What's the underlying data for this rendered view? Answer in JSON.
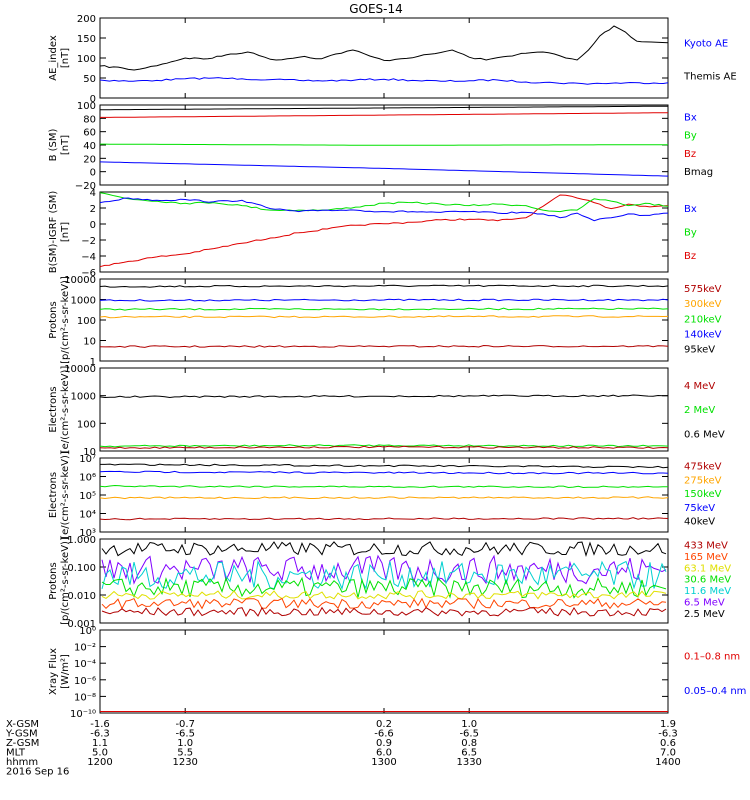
{
  "title": "GOES-14",
  "colors": {
    "black": "#000000",
    "blue": "#0000ff",
    "green": "#00e000",
    "red": "#e00000",
    "darkred": "#b00000",
    "orange": "#ffa500",
    "cyan": "#00d0d0",
    "purple": "#8000ff",
    "orangered": "#ff4500",
    "yellow": "#e0e000"
  },
  "xaxis": {
    "time_range": [
      1200,
      1400
    ],
    "ticks": [
      1200,
      1230,
      1300,
      1330,
      1400
    ],
    "rows": [
      {
        "label": "X-GSM",
        "values": [
          "-1.6",
          "-0.7",
          "0.2",
          "1.0",
          "1.9"
        ]
      },
      {
        "label": "Y-GSM",
        "values": [
          "-6.3",
          "-6.5",
          "-6.6",
          "-6.5",
          "-6.3"
        ]
      },
      {
        "label": "Z-GSM",
        "values": [
          "1.1",
          "1.0",
          "0.9",
          "0.8",
          "0.6"
        ]
      },
      {
        "label": "MLT",
        "values": [
          "5.0",
          "5.5",
          "6.0",
          "6.5",
          "7.0"
        ]
      },
      {
        "label": "hhmm",
        "values": [
          "1200",
          "1230",
          "1300",
          "1330",
          "1400"
        ]
      }
    ],
    "date": "2016 Sep 16"
  },
  "chart_data": [
    {
      "type": "line",
      "ylabel": [
        "AE_index",
        "[nT]"
      ],
      "ylim": [
        0,
        200
      ],
      "yticks": [
        "0",
        "50",
        "100",
        "150",
        "200"
      ],
      "legend": [
        {
          "text": "Kyoto AE",
          "color": "#0000ff"
        },
        {
          "text": "Themis AE",
          "color": "#000000"
        }
      ],
      "series": [
        {
          "name": "Themis AE",
          "color": "#000000",
          "x": [
            1200,
            1208,
            1212,
            1216,
            1222,
            1230,
            1238,
            1246,
            1252,
            1258,
            1262,
            1266,
            1272,
            1278,
            1283,
            1289,
            1295,
            1300,
            1306,
            1312,
            1318,
            1324,
            1330,
            1336,
            1342,
            1350,
            1356,
            1360,
            1364,
            1368,
            1372,
            1376,
            1381,
            1385,
            1389,
            1394,
            1400
          ],
          "y": [
            80,
            75,
            70,
            75,
            85,
            100,
            98,
            110,
            115,
            102,
            95,
            98,
            104,
            98,
            110,
            120,
            105,
            94,
            98,
            104,
            111,
            120,
            102,
            95,
            103,
            112,
            115,
            110,
            100,
            95,
            120,
            155,
            180,
            165,
            142,
            140,
            138
          ]
        },
        {
          "name": "Kyoto AE",
          "color": "#0000ff",
          "x": [
            1200,
            1210,
            1220,
            1230,
            1240,
            1250,
            1260,
            1270,
            1280,
            1290,
            1300,
            1310,
            1320,
            1330,
            1340,
            1350,
            1360,
            1370,
            1380,
            1390,
            1400
          ],
          "y": [
            45,
            42,
            44,
            48,
            50,
            48,
            46,
            44,
            43,
            45,
            47,
            44,
            42,
            43,
            45,
            40,
            38,
            36,
            37,
            38,
            38
          ]
        }
      ]
    },
    {
      "type": "line",
      "ylabel": [
        "B (SM)",
        "[nT]"
      ],
      "ylim": [
        -25,
        110
      ],
      "yticks": [
        "−20",
        "0",
        "20",
        "40",
        "60",
        "80",
        "100"
      ],
      "legend": [
        {
          "text": "Bx",
          "color": "#0000ff"
        },
        {
          "text": "By",
          "color": "#00e000"
        },
        {
          "text": "Bz",
          "color": "#e00000"
        },
        {
          "text": "Bmag",
          "color": "#000000"
        }
      ],
      "series": [
        {
          "name": "Bmag",
          "color": "#000000",
          "x": [
            1200,
            1300,
            1400
          ],
          "y": [
            102,
            105,
            108
          ]
        },
        {
          "name": "Bz",
          "color": "#e00000",
          "x": [
            1200,
            1300,
            1400
          ],
          "y": [
            89,
            93,
            97
          ]
        },
        {
          "name": "By",
          "color": "#00e000",
          "x": [
            1200,
            1300,
            1400
          ],
          "y": [
            44,
            42,
            43
          ]
        },
        {
          "name": "Bx",
          "color": "#0000ff",
          "x": [
            1200,
            1300,
            1400
          ],
          "y": [
            14,
            3,
            -10
          ]
        }
      ]
    },
    {
      "type": "line",
      "ylabel": [
        "B(SM)-IGRF (SM)",
        "[nT]"
      ],
      "ylim": [
        -6.2,
        4.4
      ],
      "yticks": [
        "−6",
        "−4",
        "−2",
        "0",
        "2",
        "4"
      ],
      "legend": [
        {
          "text": "Bx",
          "color": "#0000ff"
        },
        {
          "text": "By",
          "color": "#00e000"
        },
        {
          "text": "Bz",
          "color": "#e00000"
        }
      ],
      "series": [
        {
          "name": "Bz",
          "color": "#e00000",
          "x": [
            1200,
            1210,
            1220,
            1230,
            1240,
            1250,
            1260,
            1270,
            1280,
            1290,
            1300,
            1310,
            1320,
            1330,
            1340,
            1350,
            1356,
            1362,
            1368,
            1374,
            1380,
            1386,
            1392,
            1400
          ],
          "y": [
            -5.5,
            -4.8,
            -4.2,
            -3.8,
            -3.1,
            -2.4,
            -1.7,
            -1.0,
            -0.5,
            0.0,
            0.2,
            0.4,
            0.7,
            0.8,
            0.6,
            1.0,
            2.5,
            4.0,
            3.6,
            3.0,
            2.2,
            2.8,
            2.5,
            2.6
          ]
        },
        {
          "name": "By",
          "color": "#00e000",
          "x": [
            1200,
            1210,
            1220,
            1230,
            1240,
            1250,
            1260,
            1270,
            1280,
            1290,
            1300,
            1310,
            1320,
            1330,
            1340,
            1350,
            1356,
            1362,
            1368,
            1374,
            1380,
            1386,
            1392,
            1400
          ],
          "y": [
            4.3,
            3.5,
            3.2,
            2.9,
            3.0,
            2.6,
            2.0,
            2.0,
            2.0,
            2.4,
            2.9,
            3.0,
            2.8,
            2.6,
            2.8,
            2.6,
            2.0,
            1.8,
            2.0,
            3.5,
            3.2,
            2.6,
            2.9,
            2.5
          ]
        },
        {
          "name": "Bx",
          "color": "#0000ff",
          "x": [
            1200,
            1210,
            1220,
            1230,
            1240,
            1250,
            1260,
            1270,
            1280,
            1290,
            1300,
            1310,
            1320,
            1330,
            1340,
            1350,
            1356,
            1362,
            1368,
            1374,
            1380,
            1386,
            1392,
            1400
          ],
          "y": [
            3.0,
            3.6,
            3.3,
            3.4,
            3.1,
            3.3,
            2.2,
            1.8,
            2.0,
            2.0,
            1.8,
            1.8,
            1.7,
            1.8,
            1.6,
            1.7,
            1.5,
            1.0,
            1.6,
            0.6,
            1.0,
            1.5,
            1.3,
            1.6
          ]
        }
      ]
    },
    {
      "type": "line",
      "log": true,
      "ylabel": [
        "Protons",
        "[p/(cm²-s-sr-keV)]"
      ],
      "ylim": [
        1,
        10000
      ],
      "yticks": [
        "1",
        "10",
        "100",
        "1000",
        "10000"
      ],
      "legend": [
        {
          "text": "575keV",
          "color": "#b00000"
        },
        {
          "text": "300keV",
          "color": "#ffa500"
        },
        {
          "text": "210keV",
          "color": "#00e000"
        },
        {
          "text": "140keV",
          "color": "#0000ff"
        },
        {
          "text": "95keV",
          "color": "#000000"
        }
      ],
      "series": [
        {
          "name": "95keV",
          "color": "#000000",
          "x": [
            1200,
            1300,
            1400
          ],
          "y": [
            4300,
            4600,
            4600
          ]
        },
        {
          "name": "140keV",
          "color": "#0000ff",
          "x": [
            1200,
            1300,
            1400
          ],
          "y": [
            900,
            950,
            950
          ]
        },
        {
          "name": "210keV",
          "color": "#00e000",
          "x": [
            1200,
            1300,
            1400
          ],
          "y": [
            330,
            340,
            350
          ]
        },
        {
          "name": "300keV",
          "color": "#ffa500",
          "x": [
            1200,
            1300,
            1400
          ],
          "y": [
            140,
            145,
            150
          ]
        },
        {
          "name": "575keV",
          "color": "#b00000",
          "x": [
            1200,
            1300,
            1400
          ],
          "y": [
            5,
            5.2,
            5.3
          ]
        }
      ]
    },
    {
      "type": "line",
      "log": true,
      "ylabel": [
        "Electrons",
        "[e/(cm²-s-sr-keV)]"
      ],
      "ylim": [
        10,
        10000
      ],
      "yticks": [
        "10",
        "100",
        "1000",
        "10000"
      ],
      "legend": [
        {
          "text": "4 MeV",
          "color": "#b00000"
        },
        {
          "text": "2 MeV",
          "color": "#00e000"
        },
        {
          "text": "0.6 MeV",
          "color": "#000000"
        }
      ],
      "series": [
        {
          "name": "0.6 MeV",
          "color": "#000000",
          "x": [
            1200,
            1300,
            1400
          ],
          "y": [
            900,
            960,
            1000
          ]
        },
        {
          "name": "2 MeV",
          "color": "#00e000",
          "x": [
            1200,
            1300,
            1400
          ],
          "y": [
            15,
            16,
            15
          ]
        },
        {
          "name": "4 MeV",
          "color": "#b00000",
          "x": [
            1200,
            1300,
            1400
          ],
          "y": [
            13,
            14,
            13
          ]
        }
      ]
    },
    {
      "type": "line",
      "log": true,
      "ylabel": [
        "Electrons",
        "[e/(cm²-s-sr-keV)]"
      ],
      "ylim": [
        1000,
        10000000
      ],
      "yticks": [
        "10³",
        "10⁴",
        "10⁵",
        "10⁶",
        "10⁷"
      ],
      "legend": [
        {
          "text": "475keV",
          "color": "#b00000"
        },
        {
          "text": "275keV",
          "color": "#ffa500"
        },
        {
          "text": "150keV",
          "color": "#00e000"
        },
        {
          "text": "75keV",
          "color": "#0000ff"
        },
        {
          "text": "40keV",
          "color": "#000000"
        }
      ],
      "series": [
        {
          "name": "40keV",
          "color": "#000000",
          "x": [
            1200,
            1300,
            1400
          ],
          "y": [
            4500000,
            3800000,
            3200000
          ]
        },
        {
          "name": "75keV",
          "color": "#0000ff",
          "x": [
            1200,
            1300,
            1400
          ],
          "y": [
            1800000,
            1600000,
            1500000
          ]
        },
        {
          "name": "150keV",
          "color": "#00e000",
          "x": [
            1200,
            1300,
            1400
          ],
          "y": [
            300000,
            280000,
            280000
          ]
        },
        {
          "name": "275keV",
          "color": "#ffa500",
          "x": [
            1200,
            1300,
            1400
          ],
          "y": [
            70000,
            72000,
            72000
          ]
        },
        {
          "name": "475keV",
          "color": "#b00000",
          "x": [
            1200,
            1300,
            1400
          ],
          "y": [
            5000,
            5200,
            5400
          ]
        }
      ]
    },
    {
      "type": "line",
      "log": true,
      "ylabel": [
        "Protons",
        "[p/(cm²-s-sr-keV)]"
      ],
      "ylim": [
        0.001,
        1.0
      ],
      "yticks": [
        "0.001",
        "0.010",
        "0.100",
        "1.000"
      ],
      "legend": [
        {
          "text": "433 MeV",
          "color": "#b00000"
        },
        {
          "text": "165 MeV",
          "color": "#ff4500"
        },
        {
          "text": "63.1 MeV",
          "color": "#e0e000"
        },
        {
          "text": "30.6 MeV",
          "color": "#00e000"
        },
        {
          "text": "11.6 MeV",
          "color": "#00d0d0"
        },
        {
          "text": "6.5 MeV",
          "color": "#8000ff"
        },
        {
          "text": "2.5 MeV",
          "color": "#000000"
        }
      ],
      "series": [
        {
          "name": "2.5 MeV",
          "color": "#000000",
          "center": 0.45,
          "spread": 0.25
        },
        {
          "name": "6.5 MeV",
          "color": "#8000ff",
          "center": 0.08,
          "spread": 0.5
        },
        {
          "name": "11.6 MeV",
          "color": "#00d0d0",
          "center": 0.05,
          "spread": 0.5
        },
        {
          "name": "30.6 MeV",
          "color": "#00e000",
          "center": 0.018,
          "spread": 0.35
        },
        {
          "name": "63.1 MeV",
          "color": "#e0e000",
          "center": 0.01,
          "spread": 0.15
        },
        {
          "name": "165 MeV",
          "color": "#ff4500",
          "center": 0.005,
          "spread": 0.18
        },
        {
          "name": "433 MeV",
          "color": "#b00000",
          "center": 0.0025,
          "spread": 0.15
        }
      ]
    },
    {
      "type": "line",
      "log": true,
      "ylabel": [
        "Xray Flux",
        "[W/m²]"
      ],
      "ylim": [
        1e-10,
        1
      ],
      "yticks": [
        "10⁻¹⁰",
        "10⁻⁸",
        "10⁻⁶",
        "10⁻⁴",
        "10⁻²",
        "10⁰"
      ],
      "legend": [
        {
          "text": "0.1–0.8 nm",
          "color": "#e00000"
        },
        {
          "text": "0.05–0.4 nm",
          "color": "#0000ff"
        }
      ],
      "series": [
        {
          "name": "0.1–0.8 nm",
          "color": "#e00000",
          "x": [
            1200,
            1400
          ],
          "y": [
            1.5e-10,
            1.5e-10
          ]
        }
      ]
    }
  ]
}
